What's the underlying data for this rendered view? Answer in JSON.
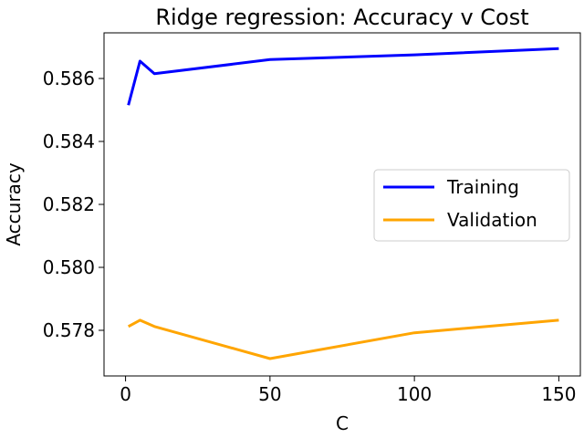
{
  "chart_data": {
    "type": "line",
    "title": "Ridge regression: Accuracy v Cost",
    "xlabel": "C",
    "ylabel": "Accuracy",
    "x": [
      1,
      5,
      10,
      50,
      100,
      150
    ],
    "series": [
      {
        "name": "Training",
        "color": "#0000ff",
        "values": [
          0.58515,
          0.58655,
          0.58615,
          0.5866,
          0.58675,
          0.58695
        ]
      },
      {
        "name": "Validation",
        "color": "#ffa500",
        "values": [
          0.57812,
          0.57832,
          0.57812,
          0.5771,
          0.57792,
          0.57832
        ]
      }
    ],
    "xlim": [
      -7.45,
      157.45
    ],
    "ylim": [
      0.57655,
      0.58745
    ],
    "xticks": [
      {
        "value": 0,
        "label": "0"
      },
      {
        "value": 50,
        "label": "50"
      },
      {
        "value": 100,
        "label": "100"
      },
      {
        "value": 150,
        "label": "150"
      }
    ],
    "yticks": [
      {
        "value": 0.578,
        "label": "0.578"
      },
      {
        "value": 0.58,
        "label": "0.580"
      },
      {
        "value": 0.582,
        "label": "0.582"
      },
      {
        "value": 0.584,
        "label": "0.584"
      },
      {
        "value": 0.586,
        "label": "0.586"
      }
    ],
    "grid": false,
    "legend_position": "center-right"
  }
}
